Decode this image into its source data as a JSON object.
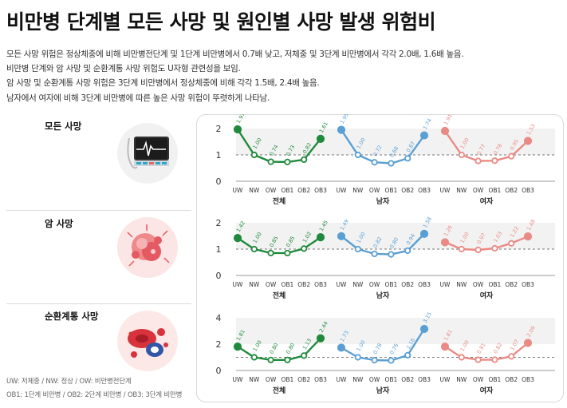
{
  "title": "비만병 단계별 모든 사망 및 원인별 사망 발생 위험비",
  "summary": [
    "모든 사망 위험은 정상체중에 비해 비만병전단계 및 1단계 비만병에서 0.7배 낮고, 저체중 및 3단계 비만병에서 각각 2.0배, 1.6배 높음.",
    "비만병 단계와 암 사망 및 순환계통 사망 위험도 U자형 관련성을 보임.",
    "암 사망 및 순환계통 사망 위험은 3단계 비만병에서 정상체중에 비해 각각 1.5배, 2.4배 높음.",
    "남자에서 여자에 비해 3단계 비만병에 따른 높은 사망 위험이 뚜렷하게 나타남."
  ],
  "sections": [
    {
      "label": "모든 사망",
      "icon": "ecg-monitor-icon"
    },
    {
      "label": "암 사망",
      "icon": "cancer-cells-icon"
    },
    {
      "label": "순환계통 사망",
      "icon": "blood-cells-icon"
    }
  ],
  "legend": [
    "UW: 저체중 / NW: 정상 / OW: 비만병전단계",
    "OB1: 1단계 비만병 / OB2: 2단계 비만병 / OB3: 3단계 비만병"
  ],
  "colors": {
    "total": "#1f8a3c",
    "male": "#5a9fd4",
    "female": "#ea8a84"
  },
  "chart_data": [
    {
      "type": "line",
      "title": "모든 사망",
      "categories": [
        "UW",
        "NW",
        "OW",
        "OB1",
        "OB2",
        "OB3"
      ],
      "ylim": [
        0,
        2
      ],
      "yticks": [
        0,
        1,
        2
      ],
      "reference_line": 1,
      "series": [
        {
          "name": "전체",
          "values": [
            1.97,
            1.0,
            0.74,
            0.73,
            0.82,
            1.61
          ]
        },
        {
          "name": "남자",
          "values": [
            1.95,
            1.0,
            0.72,
            0.68,
            0.87,
            1.74
          ]
        },
        {
          "name": "여자",
          "values": [
            1.91,
            1.0,
            0.77,
            0.78,
            0.95,
            1.53
          ]
        }
      ]
    },
    {
      "type": "line",
      "title": "암 사망",
      "categories": [
        "UW",
        "NW",
        "OW",
        "OB1",
        "OB2",
        "OB3"
      ],
      "ylim": [
        0,
        2
      ],
      "yticks": [
        0,
        1,
        2
      ],
      "reference_line": 1,
      "series": [
        {
          "name": "전체",
          "values": [
            1.42,
            1.0,
            0.85,
            0.85,
            1.02,
            1.45
          ]
        },
        {
          "name": "남자",
          "values": [
            1.49,
            1.0,
            0.82,
            0.8,
            0.94,
            1.58
          ]
        },
        {
          "name": "여자",
          "values": [
            1.26,
            1.0,
            0.97,
            1.03,
            1.22,
            1.48
          ]
        }
      ]
    },
    {
      "type": "line",
      "title": "순환계통 사망",
      "categories": [
        "UW",
        "NW",
        "OW",
        "OB1",
        "OB2",
        "OB3"
      ],
      "ylim": [
        0,
        4
      ],
      "yticks": [
        0,
        2,
        4
      ],
      "reference_line": 1,
      "series": [
        {
          "name": "전체",
          "values": [
            1.81,
            1.0,
            0.8,
            0.8,
            1.13,
            2.44
          ]
        },
        {
          "name": "남자",
          "values": [
            1.73,
            1.0,
            0.78,
            0.76,
            1.16,
            3.15
          ]
        },
        {
          "name": "여자",
          "values": [
            1.81,
            1.0,
            0.81,
            0.82,
            1.07,
            2.09
          ]
        }
      ]
    }
  ]
}
